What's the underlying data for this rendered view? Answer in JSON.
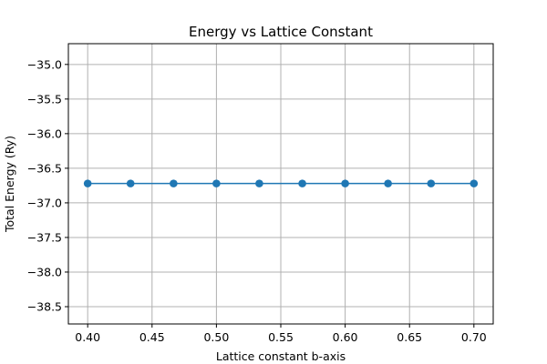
{
  "chart_data": {
    "type": "line",
    "title": "Energy vs Lattice Constant",
    "xlabel": "Lattice constant b-axis",
    "ylabel": "Total Energy (Ry)",
    "x": [
      0.4,
      0.4333,
      0.4667,
      0.5,
      0.5333,
      0.5667,
      0.6,
      0.6333,
      0.6667,
      0.7
    ],
    "series": [
      {
        "values": [
          -36.72,
          -36.72,
          -36.72,
          -36.72,
          -36.72,
          -36.72,
          -36.72,
          -36.72,
          -36.72,
          -36.72
        ],
        "color": "#1f77b4",
        "marker": "circle"
      }
    ],
    "xlim": [
      0.385,
      0.715
    ],
    "ylim": [
      -38.75,
      -34.7
    ],
    "xticks": [
      0.4,
      0.45,
      0.5,
      0.55,
      0.6,
      0.65,
      0.7
    ],
    "xtick_labels": [
      "0.40",
      "0.45",
      "0.50",
      "0.55",
      "0.60",
      "0.65",
      "0.70"
    ],
    "yticks": [
      -35.0,
      -35.5,
      -36.0,
      -36.5,
      -37.0,
      -37.5,
      -38.0,
      -38.5
    ],
    "ytick_labels": [
      "−35.0",
      "−35.5",
      "−36.0",
      "−36.5",
      "−37.0",
      "−37.5",
      "−38.0",
      "−38.5"
    ],
    "grid": true,
    "legend": false
  }
}
